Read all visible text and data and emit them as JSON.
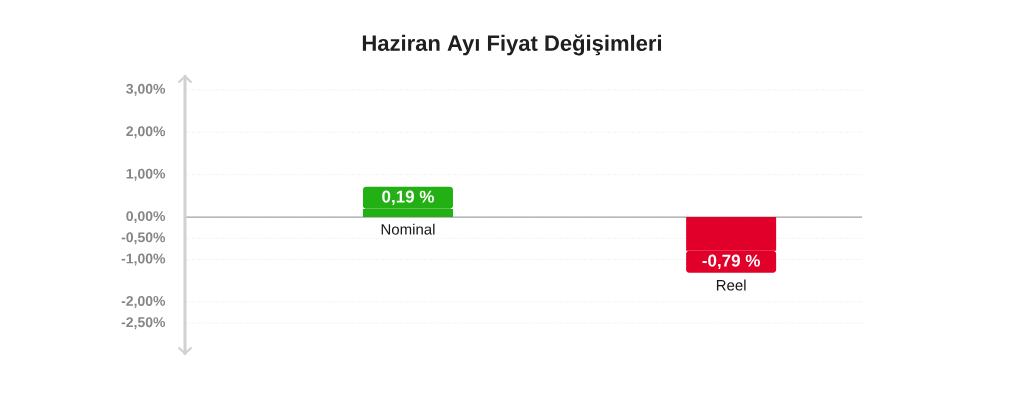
{
  "chart_data": {
    "type": "bar",
    "title": "Haziran Ayı Fiyat Değişimleri",
    "categories": [
      "Nominal",
      "Reel"
    ],
    "values": [
      0.19,
      -0.79
    ],
    "colors": [
      "#22b014",
      "#e0002a"
    ],
    "value_labels": [
      "0,19 %",
      "-0,79 %"
    ],
    "ylim": [
      -3.25,
      3.35
    ],
    "yticks": [
      {
        "value": -2.5,
        "label": "-2,50%"
      },
      {
        "value": -2,
        "label": "-2,00%"
      },
      {
        "value": -1,
        "label": "-1,00%"
      },
      {
        "value": -0.5,
        "label": "-0,50%"
      },
      {
        "value": 0,
        "label": "0,00%"
      },
      {
        "value": 1,
        "label": "1,00%"
      },
      {
        "value": 2,
        "label": "2,00%"
      },
      {
        "value": 3,
        "label": "3,00%"
      }
    ],
    "grid": "y"
  }
}
